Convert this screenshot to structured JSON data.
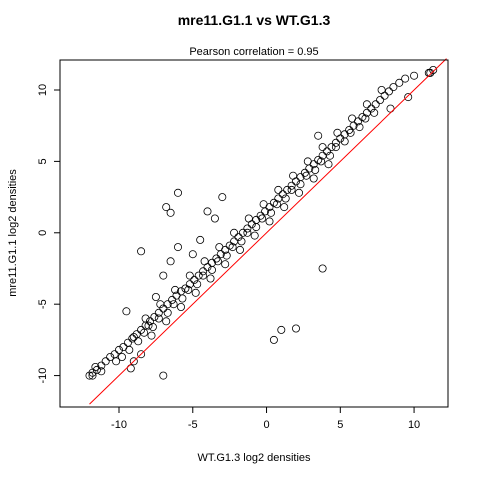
{
  "chart_data": {
    "type": "scatter",
    "title": "mre11.G1.1 vs WT.G1.3",
    "subtitle": "Pearson correlation =  0.95",
    "xlabel": "WT.G1.3 log2 densities",
    "ylabel": "mre11.G1.1 log2 densities",
    "xlim": [
      -14,
      12.3
    ],
    "ylim": [
      -12.2,
      12.1
    ],
    "x_ticks": [
      -10,
      -5,
      0,
      5,
      10
    ],
    "y_ticks": [
      -10,
      -5,
      0,
      5,
      10
    ],
    "x_tick_labels": [
      "-10",
      "-5",
      "0",
      "5",
      "10"
    ],
    "y_tick_labels": [
      "-10",
      "-5",
      "0",
      "5",
      "10"
    ],
    "grid": false,
    "legend": "none",
    "marker": "open-circle",
    "point_color": "#000000",
    "fit_line": {
      "color": "#ff0000",
      "from": [
        -12,
        -12
      ],
      "to": [
        12.2,
        12.2
      ]
    },
    "series": [
      {
        "values_x": [
          -12.0,
          -11.8,
          -11.5,
          -11.2,
          -10.9,
          -10.6,
          -10.3,
          -10.0,
          -9.7,
          -9.4,
          -9.1,
          -8.8,
          -8.5,
          -8.2,
          -7.9,
          -7.6,
          -7.3,
          -7.0,
          -6.7,
          -6.4,
          -6.1,
          -5.8,
          -5.5,
          -5.2,
          -4.9,
          -4.6,
          -4.3,
          -4.0,
          -3.7,
          -3.4,
          -3.1,
          -2.8,
          -2.5,
          -2.2,
          -1.9,
          -1.6,
          -1.3,
          -1.0,
          -0.7,
          -0.4,
          -0.1,
          0.2,
          0.5,
          0.8,
          1.1,
          1.4,
          1.7,
          2.0,
          2.3,
          2.6,
          2.9,
          3.2,
          3.5,
          3.8,
          4.1,
          4.4,
          4.7,
          5.0,
          5.3,
          5.6,
          5.9,
          6.2,
          6.5,
          6.8,
          7.1,
          7.4,
          7.7,
          8.0,
          8.3,
          8.6,
          9.0,
          9.4,
          10.0,
          11.0,
          11.3,
          -9.5,
          -8.0,
          -7.0,
          -6.5,
          -6.0,
          -7.5,
          -4.0,
          -3.0,
          -5.0,
          -4.5,
          -8.5,
          -9.0,
          -7.8,
          -6.8,
          -5.8,
          -4.8,
          -3.8,
          -2.8,
          -1.8,
          -0.8,
          0.2,
          1.2,
          2.2,
          3.2,
          4.2,
          -8.2,
          -7.2,
          -6.2,
          -5.2,
          -4.2,
          -3.2,
          -2.2,
          -1.2,
          -0.2,
          0.8,
          1.8,
          2.8,
          3.8,
          4.8,
          5.8,
          6.8,
          7.8,
          -10.2,
          -9.8,
          -9.3,
          -8.7,
          -8.3,
          -7.7,
          -7.3,
          -6.7,
          -6.3,
          -5.7,
          -5.3,
          -4.7,
          -4.3,
          -3.7,
          -3.3,
          -2.7,
          -2.3,
          -1.7,
          -1.3,
          -0.7,
          -0.3,
          0.3,
          0.7,
          1.3,
          1.7,
          2.3,
          2.7,
          3.3,
          3.7,
          4.3,
          4.7,
          5.3,
          5.7,
          6.3,
          6.7,
          7.3,
          -6.5,
          -8.5,
          -3.5,
          3.8,
          1.0,
          2.0,
          3.5,
          0.5,
          -7.0,
          -9.2,
          -9.0,
          -6.8,
          -6.0,
          -11.6,
          -11.2,
          -11.8,
          11.1,
          9.6,
          8.4
        ],
        "values_y": [
          -10.0,
          -9.8,
          -9.6,
          -9.3,
          -9.0,
          -8.7,
          -8.5,
          -8.2,
          -8.0,
          -7.7,
          -7.4,
          -7.1,
          -6.8,
          -6.5,
          -6.2,
          -5.9,
          -5.6,
          -5.3,
          -5.0,
          -4.7,
          -4.4,
          -4.1,
          -3.9,
          -3.6,
          -3.3,
          -3.0,
          -2.7,
          -2.4,
          -2.1,
          -1.8,
          -1.5,
          -1.2,
          -0.9,
          -0.6,
          -0.3,
          0.0,
          0.3,
          0.6,
          0.9,
          1.2,
          1.5,
          1.8,
          2.1,
          2.4,
          2.7,
          3.0,
          3.3,
          3.6,
          3.9,
          4.2,
          4.5,
          4.8,
          5.1,
          5.4,
          5.7,
          6.0,
          6.3,
          6.6,
          6.9,
          7.2,
          7.5,
          7.8,
          8.1,
          8.4,
          8.7,
          9.0,
          9.3,
          9.6,
          9.9,
          10.2,
          10.5,
          10.8,
          11.0,
          11.2,
          11.4,
          -5.5,
          -6.5,
          -3.0,
          -2.0,
          -1.0,
          -4.5,
          1.5,
          2.5,
          -1.5,
          -0.5,
          -8.5,
          -9.0,
          -7.2,
          -6.2,
          -5.2,
          -4.2,
          -3.2,
          -2.2,
          -1.2,
          -0.2,
          0.8,
          1.8,
          2.8,
          3.8,
          4.8,
          -6.0,
          -5.0,
          -4.0,
          -3.0,
          -2.0,
          -1.0,
          0.0,
          1.0,
          2.0,
          3.0,
          4.0,
          5.0,
          6.0,
          7.0,
          8.0,
          9.0,
          10.0,
          -9.0,
          -8.7,
          -8.2,
          -7.6,
          -7.0,
          -6.6,
          -6.0,
          -5.6,
          -5.0,
          -4.6,
          -4.0,
          -3.6,
          -3.0,
          -2.6,
          -2.0,
          -1.6,
          -1.0,
          -0.6,
          0.0,
          0.4,
          1.0,
          1.4,
          2.0,
          2.4,
          3.0,
          3.4,
          4.0,
          4.4,
          5.0,
          5.4,
          6.0,
          6.4,
          7.0,
          7.4,
          8.0,
          8.4,
          1.4,
          -1.3,
          1.0,
          -2.5,
          -6.8,
          -6.7,
          6.8,
          -7.5,
          -10.0,
          -9.5,
          -7.3,
          1.8,
          2.8,
          -9.4,
          -9.7,
          -10.0,
          11.2,
          9.5,
          8.7
        ]
      }
    ]
  }
}
